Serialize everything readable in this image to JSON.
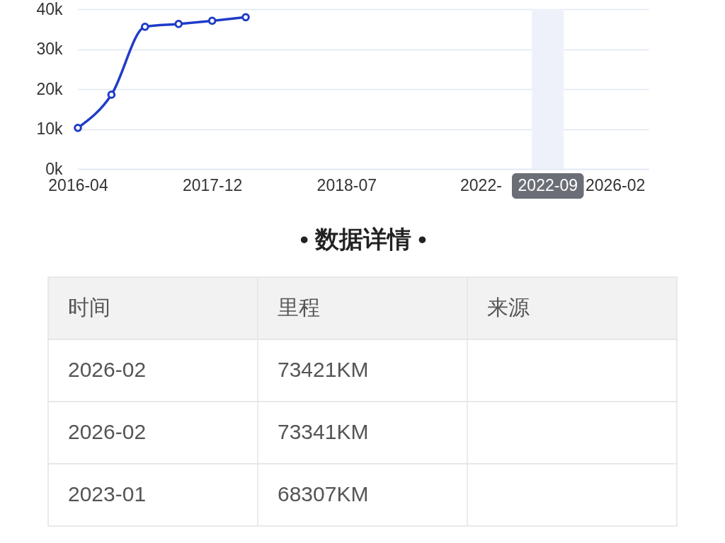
{
  "chart_data": [
    {
      "type": "line",
      "categories": [
        "2016-04",
        null,
        null,
        null,
        "2017-12",
        null,
        null,
        null,
        "2018-07",
        null,
        null,
        null,
        "2022-",
        null,
        "2022-09",
        null,
        "2026-02",
        null
      ],
      "series": [
        {
          "color": "#1f3cc8",
          "values": [
            10300,
            18600,
            35600,
            36300,
            37100,
            38000,
            null,
            null,
            null,
            null,
            null,
            null,
            null,
            null,
            null,
            null,
            null,
            null
          ]
        }
      ],
      "ylim": [
        0,
        40000
      ],
      "yticks": [
        {
          "value": 0,
          "label": "0k"
        },
        {
          "value": 10000,
          "label": "10k"
        },
        {
          "value": 20000,
          "label": "20k"
        },
        {
          "value": 30000,
          "label": "30k"
        },
        {
          "value": 40000,
          "label": "40k"
        }
      ],
      "bands": [
        {
          "axis": "x",
          "from": "2022-09",
          "to": "2022-09",
          "color": "#eef1f9"
        }
      ],
      "grid": "y",
      "marker": "circle",
      "line_style": "solid"
    },
    {
      "type": "other",
      "title": "• 数据详情 •",
      "categories": [
        "时间",
        "里程",
        "来源"
      ],
      "cell_labels": [
        [
          "2026-02",
          "73421KM",
          null
        ],
        [
          "2026-02",
          "73341KM",
          null
        ],
        [
          "2023-01",
          "68307KM",
          null
        ]
      ]
    }
  ]
}
